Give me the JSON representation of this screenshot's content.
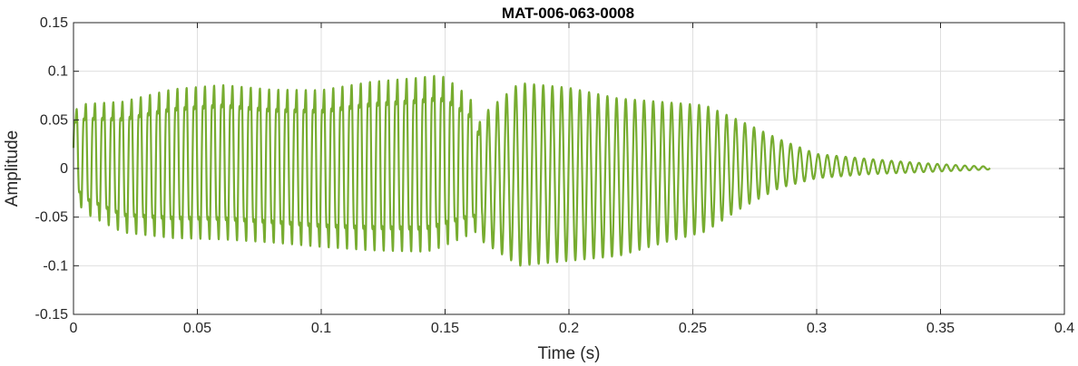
{
  "chart_data": {
    "type": "line",
    "title": "MAT-006-063-0008",
    "xlabel": "Time (s)",
    "ylabel": "Amplitude",
    "xlim": [
      0,
      0.4
    ],
    "ylim": [
      -0.15,
      0.15
    ],
    "xticks": [
      0,
      0.05,
      0.1,
      0.15,
      0.2,
      0.25,
      0.3,
      0.35,
      0.4
    ],
    "xtick_labels": [
      "0",
      "0.05",
      "0.1",
      "0.15",
      "0.2",
      "0.25",
      "0.3",
      "0.35",
      "0.4"
    ],
    "yticks": [
      0.15,
      0.1,
      0.05,
      0,
      -0.05,
      -0.1,
      -0.15
    ],
    "ytick_labels": [
      "0.15",
      "0.1",
      "0.05",
      "0",
      "-0.05",
      "-0.1",
      "-0.15"
    ],
    "grid": true,
    "series": [
      {
        "color": "#77ac30",
        "duration": 0.37,
        "approx_cycles": 100,
        "envelope_points": {
          "t": [
            0,
            0.005,
            0.02,
            0.04,
            0.06,
            0.08,
            0.1,
            0.12,
            0.14,
            0.145,
            0.15,
            0.16,
            0.165,
            0.18,
            0.2,
            0.22,
            0.24,
            0.255,
            0.27,
            0.285,
            0.3,
            0.32,
            0.34,
            0.36,
            0.37
          ],
          "max": [
            0.07,
            0.08,
            0.085,
            0.1,
            0.105,
            0.1,
            0.1,
            0.11,
            0.115,
            0.117,
            0.115,
            0.09,
            0.055,
            0.088,
            0.083,
            0.072,
            0.068,
            0.065,
            0.048,
            0.03,
            0.015,
            0.01,
            0.006,
            0.003,
            0.002
          ],
          "min": [
            -0.04,
            -0.06,
            -0.082,
            -0.09,
            -0.092,
            -0.095,
            -0.1,
            -0.105,
            -0.107,
            -0.106,
            -0.1,
            -0.085,
            -0.075,
            -0.1,
            -0.095,
            -0.09,
            -0.075,
            -0.065,
            -0.04,
            -0.02,
            -0.01,
            -0.006,
            -0.004,
            -0.002,
            -0.001
          ]
        }
      }
    ]
  }
}
